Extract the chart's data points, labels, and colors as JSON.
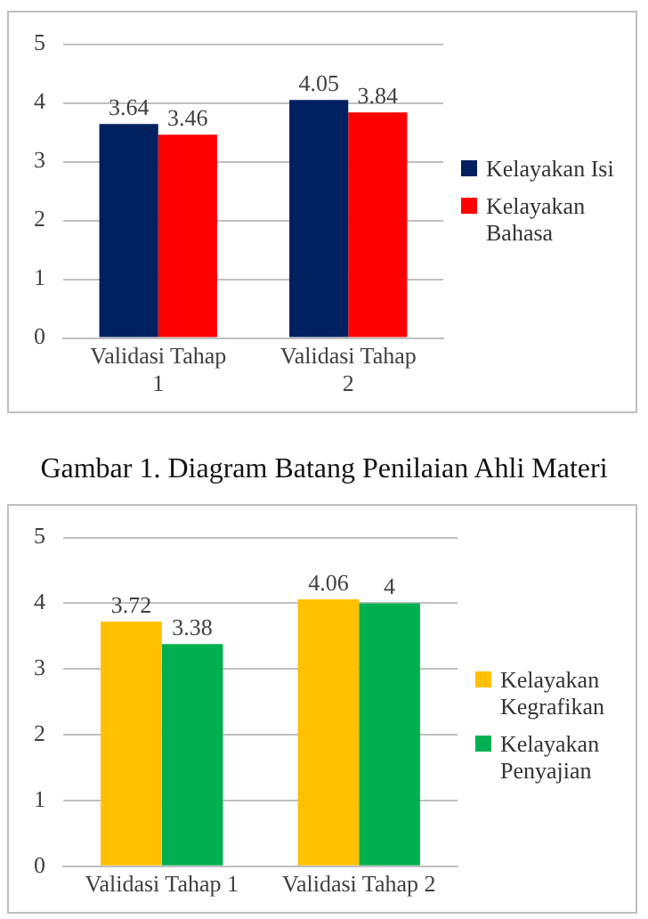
{
  "chart_data": [
    {
      "type": "bar",
      "categories": [
        "Validasi Tahap 1",
        "Validasi Tahap 2"
      ],
      "series": [
        {
          "name": "Kelayakan Isi",
          "color": "#002060",
          "values": [
            3.64,
            4.05
          ]
        },
        {
          "name": "Kelayakan Bahasa",
          "color": "#ff0000",
          "values": [
            3.46,
            3.84
          ]
        }
      ],
      "ylim": [
        0,
        5
      ],
      "yticks": [
        0,
        1,
        2,
        3,
        4,
        5
      ],
      "grid": "y",
      "legend": "right",
      "data_labels": true,
      "annotations": [
        "Gambar 1. Diagram Batang Penilaian Ahli Materi"
      ]
    },
    {
      "type": "bar",
      "categories": [
        "Validasi Tahap 1",
        "Validasi Tahap 2"
      ],
      "series": [
        {
          "name": "Kelayakan Kegrafikan",
          "color": "#ffc000",
          "values": [
            3.72,
            4.06
          ]
        },
        {
          "name": "Kelayakan Penyajian",
          "color": "#00b050",
          "values": [
            3.38,
            4
          ]
        }
      ],
      "ylim": [
        0,
        5
      ],
      "yticks": [
        0,
        1,
        2,
        3,
        4,
        5
      ],
      "grid": "y",
      "legend": "right",
      "data_labels": true
    }
  ]
}
